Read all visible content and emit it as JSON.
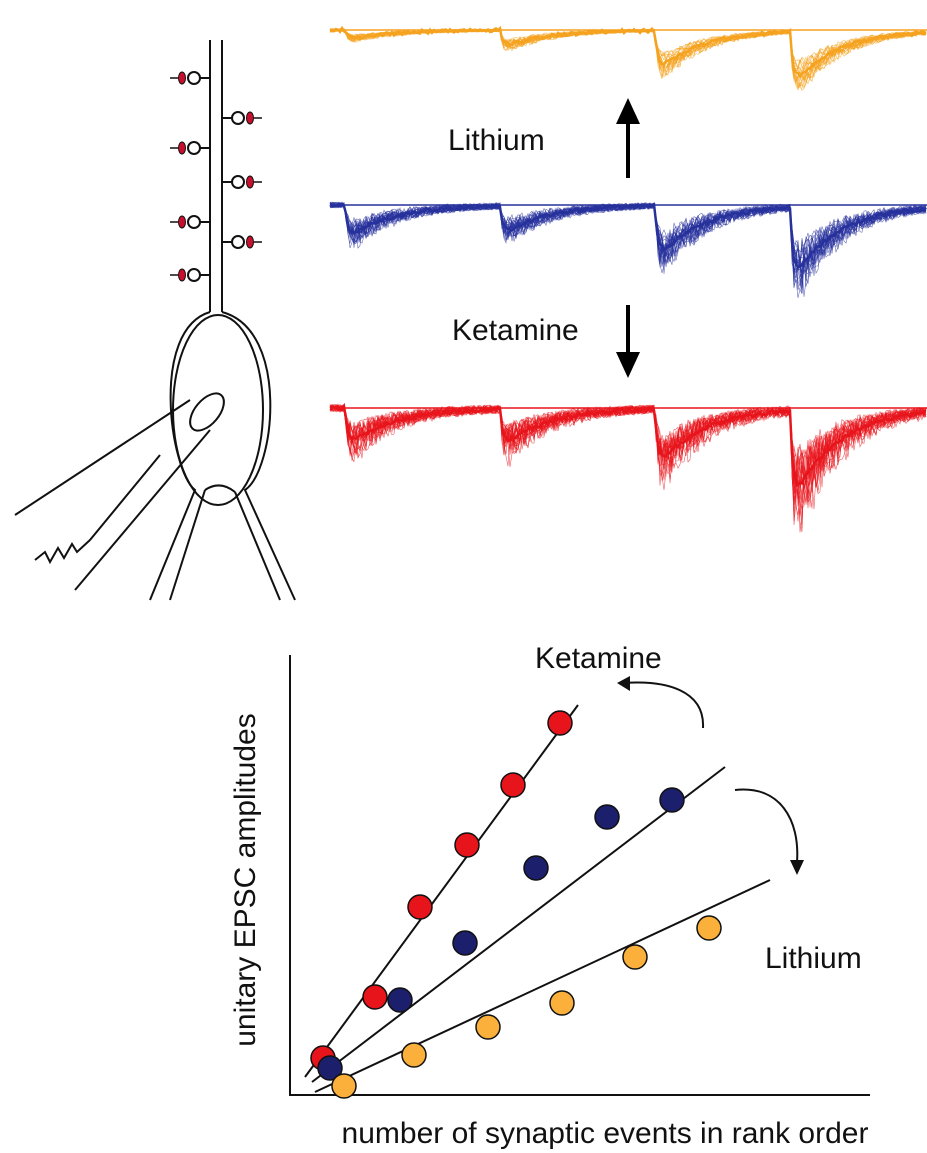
{
  "labels": {
    "lithium_top": "Lithium",
    "ketamine_top": "Ketamine",
    "ketamine_plot": "Ketamine",
    "lithium_plot": "Lithium"
  },
  "plot": {
    "y_axis_label": "unitary EPSC amplitudes",
    "x_axis_label": "number of synaptic events in rank order"
  }
}
